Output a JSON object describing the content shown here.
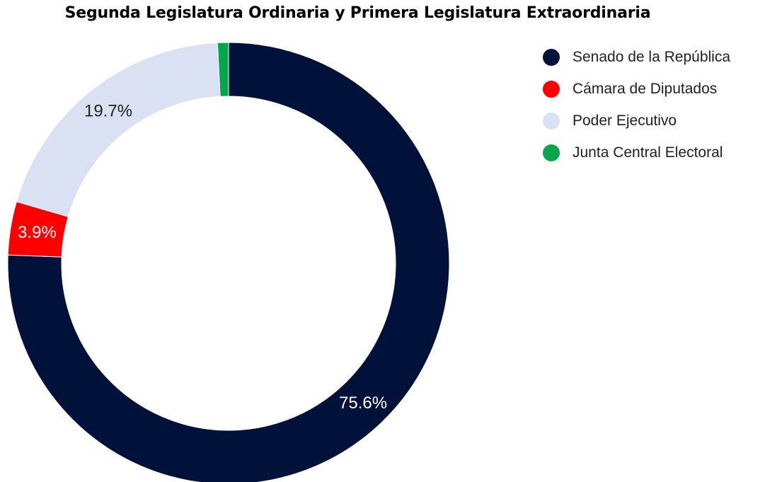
{
  "chart_data": {
    "type": "pie",
    "title": "Segunda Legislatura Ordinaria y Primera Legislatura Extraordinaria",
    "donut": true,
    "legend_position": "right",
    "slices": [
      {
        "name": "Senado de la República",
        "value": 75.6,
        "label": "75.6%",
        "color": "#00113a",
        "label_color": "#ffffff"
      },
      {
        "name": "Cámara de Diputados",
        "value": 3.9,
        "label": "3.9%",
        "color": "#ff0000",
        "label_color": "#ffffff"
      },
      {
        "name": "Poder Ejecutivo",
        "value": 19.7,
        "label": "19.7%",
        "color": "#dae1f3",
        "label_color": "#222222"
      },
      {
        "name": "Junta Central Electoral",
        "value": 0.8,
        "label": "",
        "color": "#04a64b",
        "label_color": "#222222"
      }
    ]
  }
}
